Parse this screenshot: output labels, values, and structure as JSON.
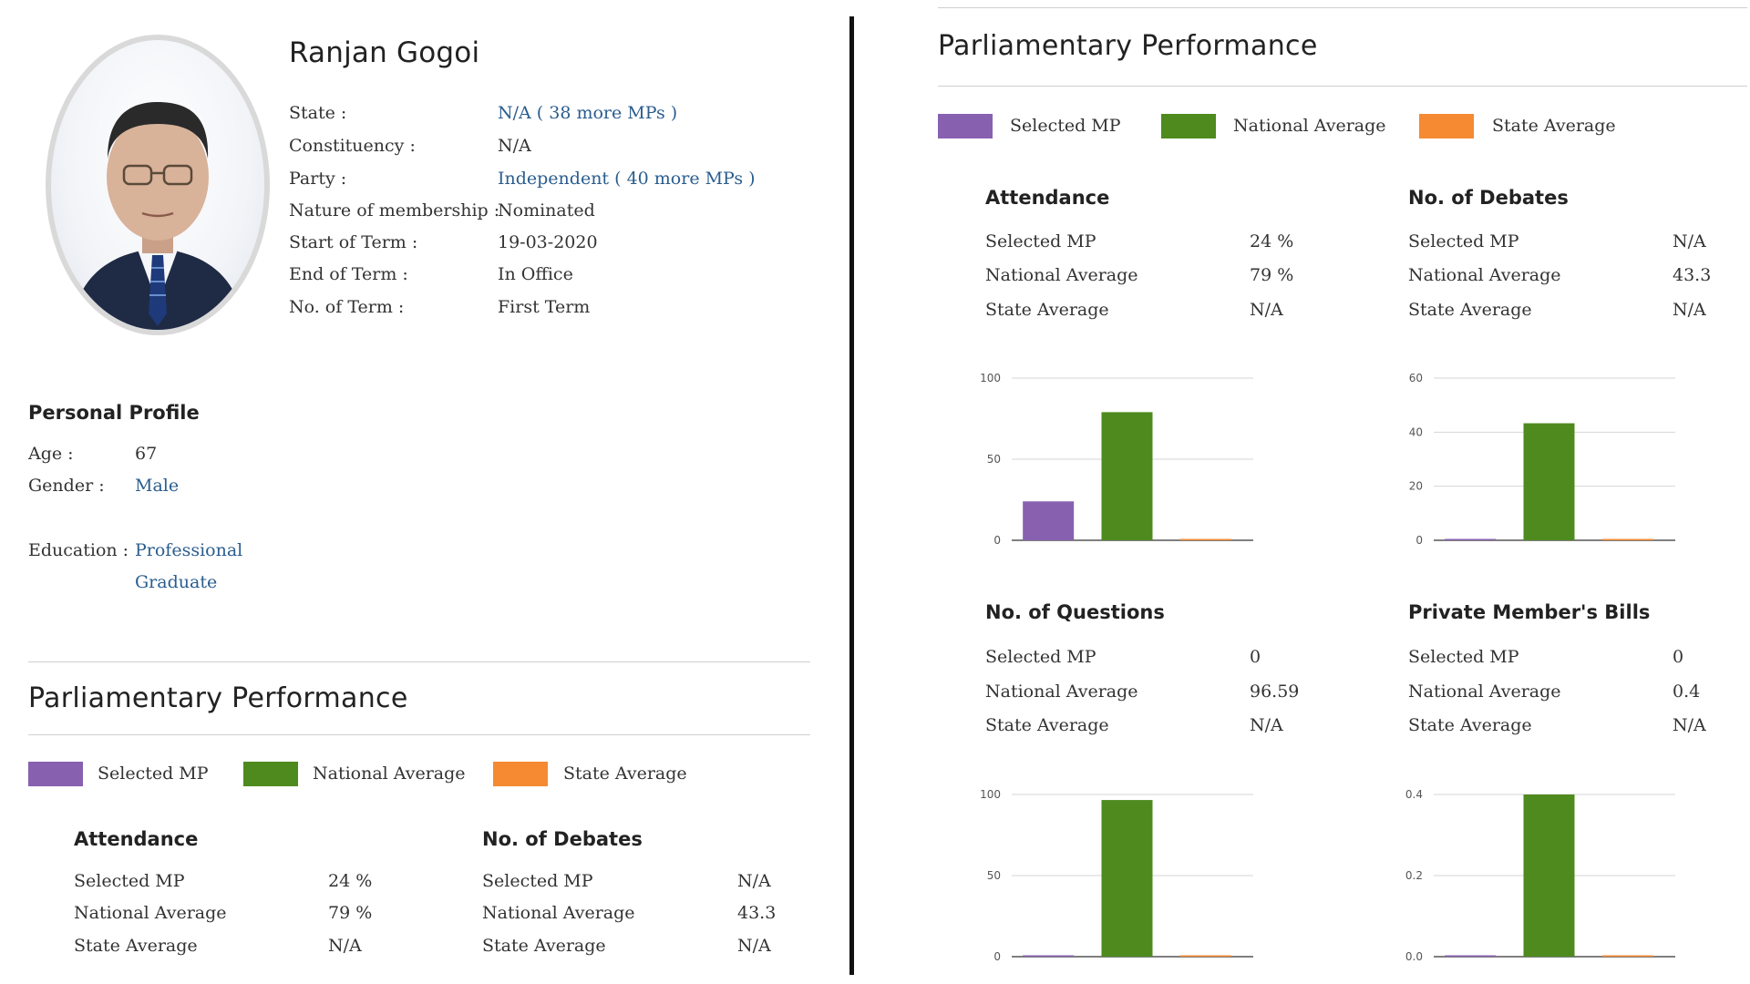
{
  "profile": {
    "name": "Ranjan Gogoi",
    "fields": [
      {
        "label": "State :",
        "value": "N/A ( 38 more MPs )",
        "link": true
      },
      {
        "label": "Constituency :",
        "value": "N/A",
        "link": false
      },
      {
        "label": "Party :",
        "value": "Independent ( 40 more MPs )",
        "link": true
      },
      {
        "label": "Nature of membership :",
        "value": "Nominated",
        "link": false
      },
      {
        "label": "Start of Term :",
        "value": "19-03-2020",
        "link": false
      },
      {
        "label": "End of Term :",
        "value": "In Office",
        "link": false
      },
      {
        "label": "No. of Term :",
        "value": "First Term",
        "link": false
      }
    ]
  },
  "personal": {
    "title": "Personal Profile",
    "age_label": "Age :",
    "age": "67",
    "gender_label": "Gender :",
    "gender": "Male",
    "education_label": "Education :",
    "education_line1": "Professional",
    "education_line2": "Graduate"
  },
  "performance_title": "Parliamentary Performance",
  "legend": [
    {
      "label": "Selected MP",
      "color": "#8860b0"
    },
    {
      "label": "National Average",
      "color": "#4e8a1e"
    },
    {
      "label": "State Average",
      "color": "#f58a32"
    }
  ],
  "rows": [
    "Selected MP",
    "National Average",
    "State Average"
  ],
  "sections": [
    {
      "title": "Attendance",
      "values": [
        "24 %",
        "79 %",
        "N/A"
      ]
    },
    {
      "title": "No. of Debates",
      "values": [
        "N/A",
        "43.3",
        "N/A"
      ]
    },
    {
      "title": "No. of Questions",
      "values": [
        "0",
        "96.59",
        "N/A"
      ]
    },
    {
      "title": "Private Member's Bills",
      "values": [
        "0",
        "0.4",
        "N/A"
      ]
    }
  ],
  "chart_data": [
    {
      "type": "bar",
      "title": "Attendance",
      "categories": [
        "Selected MP",
        "National Average",
        "State Average"
      ],
      "values": [
        24,
        79,
        0
      ],
      "ylim": [
        0,
        100
      ],
      "ticks": [
        "0",
        "50",
        "100"
      ],
      "tick_values": [
        0,
        50,
        100
      ]
    },
    {
      "type": "bar",
      "title": "No. of Debates",
      "categories": [
        "Selected MP",
        "National Average",
        "State Average"
      ],
      "values": [
        0,
        43.3,
        0
      ],
      "ylim": [
        0,
        60
      ],
      "ticks": [
        "0",
        "20",
        "40",
        "60"
      ],
      "tick_values": [
        0,
        20,
        40,
        60
      ]
    },
    {
      "type": "bar",
      "title": "No. of Questions",
      "categories": [
        "Selected MP",
        "National Average",
        "State Average"
      ],
      "values": [
        0,
        96.59,
        0
      ],
      "ylim": [
        0,
        100
      ],
      "ticks": [
        "0",
        "50",
        "100"
      ],
      "tick_values": [
        0,
        50,
        100
      ]
    },
    {
      "type": "bar",
      "title": "Private Member's Bills",
      "categories": [
        "Selected MP",
        "National Average",
        "State Average"
      ],
      "values": [
        0,
        0.4,
        0
      ],
      "ylim": [
        0,
        0.4
      ],
      "ticks": [
        "0.0",
        "0.2",
        "0.4"
      ],
      "tick_values": [
        0,
        0.2,
        0.4
      ]
    }
  ]
}
